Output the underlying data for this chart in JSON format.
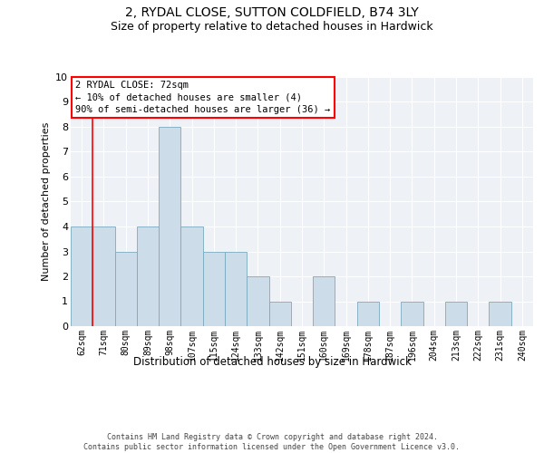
{
  "title_line1": "2, RYDAL CLOSE, SUTTON COLDFIELD, B74 3LY",
  "title_line2": "Size of property relative to detached houses in Hardwick",
  "xlabel": "Distribution of detached houses by size in Hardwick",
  "ylabel": "Number of detached properties",
  "categories": [
    "62sqm",
    "71sqm",
    "80sqm",
    "89sqm",
    "98sqm",
    "107sqm",
    "115sqm",
    "124sqm",
    "133sqm",
    "142sqm",
    "151sqm",
    "160sqm",
    "169sqm",
    "178sqm",
    "187sqm",
    "196sqm",
    "204sqm",
    "213sqm",
    "222sqm",
    "231sqm",
    "240sqm"
  ],
  "values": [
    4,
    4,
    3,
    4,
    8,
    4,
    3,
    3,
    2,
    1,
    0,
    2,
    0,
    1,
    0,
    1,
    0,
    1,
    0,
    1,
    0
  ],
  "bar_color": "#ccdce8",
  "bar_edgecolor": "#7aaabf",
  "annotation_text": "2 RYDAL CLOSE: 72sqm\n← 10% of detached houses are smaller (4)\n90% of semi-detached houses are larger (36) →",
  "annotation_box_edgecolor": "red",
  "vline_color": "red",
  "vline_x": 0.5,
  "ylim": [
    0,
    10
  ],
  "yticks": [
    0,
    1,
    2,
    3,
    4,
    5,
    6,
    7,
    8,
    9,
    10
  ],
  "background_color": "#eef2f7",
  "footer_text": "Contains HM Land Registry data © Crown copyright and database right 2024.\nContains public sector information licensed under the Open Government Licence v3.0.",
  "grid_color": "white",
  "title_fontsize": 10,
  "subtitle_fontsize": 9,
  "tick_fontsize": 7,
  "ylabel_fontsize": 8,
  "xlabel_fontsize": 8.5,
  "annotation_fontsize": 7.5,
  "footer_fontsize": 6
}
